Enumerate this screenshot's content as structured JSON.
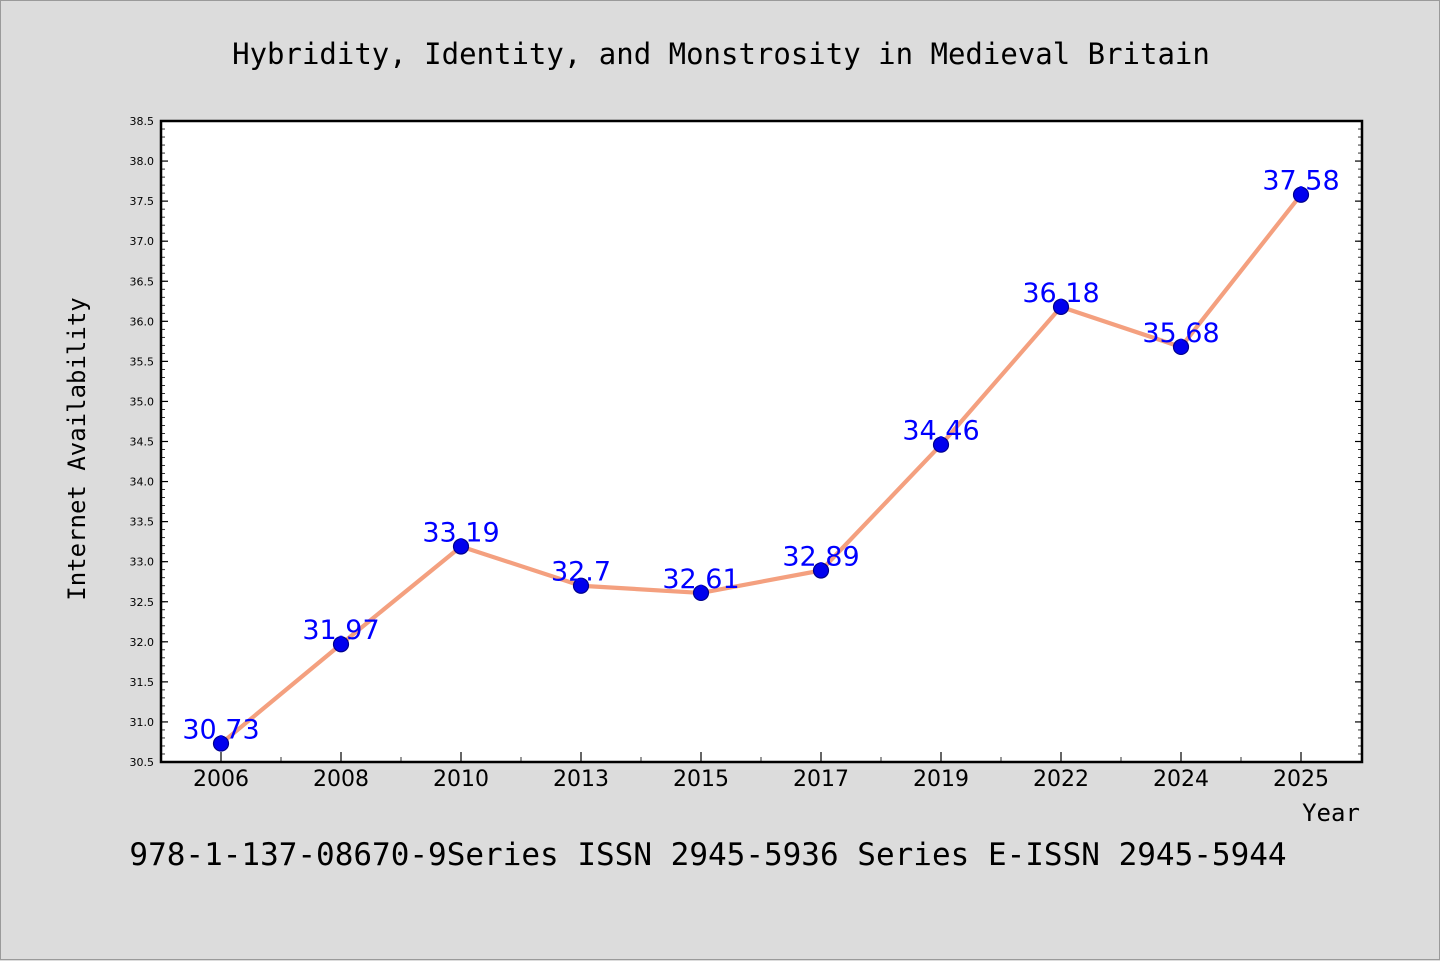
{
  "chart_data": {
    "type": "line",
    "title": "Hybridity, Identity, and Monstrosity in Medieval Britain",
    "xlabel": "Year",
    "ylabel": "Internet Availability",
    "footer": "978-1-137-08670-9Series ISSN 2945-5936 Series E-ISSN 2945-5944",
    "categories": [
      "2006",
      "2008",
      "2010",
      "2013",
      "2015",
      "2017",
      "2019",
      "2022",
      "2024",
      "2025"
    ],
    "series": [
      {
        "values": [
          30.73,
          31.97,
          33.19,
          32.7,
          32.61,
          32.89,
          34.46,
          36.18,
          35.68,
          37.58
        ]
      }
    ],
    "data_labels": [
      "30.73",
      "31.97",
      "33.19",
      "32.7",
      "32.61",
      "32.89",
      "34.46",
      "36.18",
      "35.68",
      "37.58"
    ],
    "ylim": [
      30.5,
      38.5
    ],
    "yticks": [
      "30.5",
      "31.0",
      "31.5",
      "32.0",
      "32.5",
      "33.0",
      "33.5",
      "34.0",
      "34.5",
      "35.0",
      "35.5",
      "36.0",
      "36.5",
      "37.0",
      "37.5",
      "38.0",
      "38.5"
    ],
    "grid": false,
    "colors": {
      "background": "#dcdcdc",
      "plot_background": "#ffffff",
      "line": "#f4a07f",
      "marker": "#0000ee",
      "marker_edge": "#00008b",
      "data_label": "#0000ff",
      "text": "#000000"
    }
  }
}
